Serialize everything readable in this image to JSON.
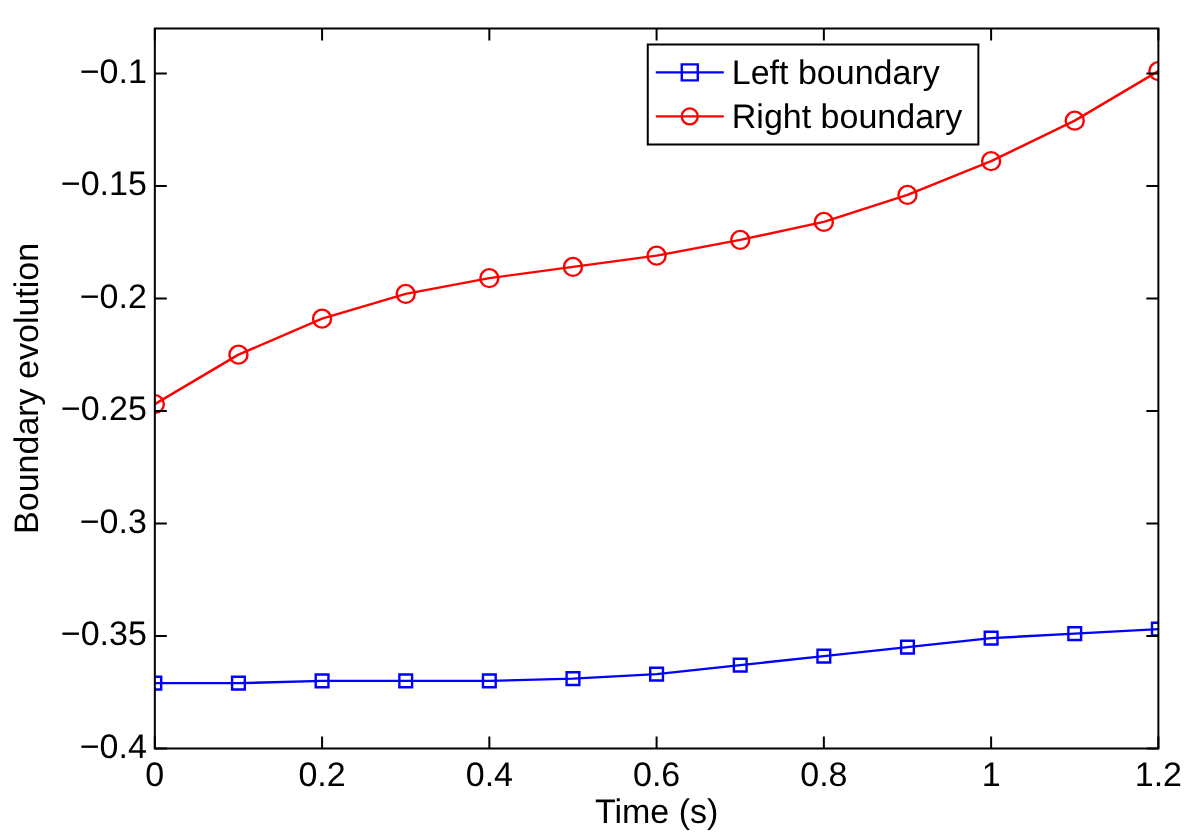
{
  "chart_data": {
    "type": "line",
    "xlabel": "Time (s)",
    "ylabel": "Boundary evolution",
    "x": [
      0,
      0.1,
      0.2,
      0.3,
      0.4,
      0.5,
      0.6,
      0.7,
      0.8,
      0.9,
      1.0,
      1.1,
      1.2
    ],
    "series": [
      {
        "name": "Left boundary",
        "color": "#0000ff",
        "marker": "square",
        "values": [
          -0.371,
          -0.371,
          -0.37,
          -0.37,
          -0.37,
          -0.369,
          -0.367,
          -0.363,
          -0.359,
          -0.355,
          -0.351,
          -0.349,
          -0.347
        ]
      },
      {
        "name": "Right boundary",
        "color": "#ff0000",
        "marker": "circle",
        "values": [
          -0.247,
          -0.225,
          -0.209,
          -0.198,
          -0.191,
          -0.186,
          -0.181,
          -0.174,
          -0.166,
          -0.154,
          -0.139,
          -0.121,
          -0.099
        ]
      }
    ],
    "xlim": [
      0,
      1.2
    ],
    "xticks": [
      0,
      0.2,
      0.4,
      0.6,
      0.8,
      1,
      1.2
    ],
    "ylim": [
      -0.4,
      -0.08
    ],
    "yticks": [
      -0.4,
      -0.35,
      -0.3,
      -0.25,
      -0.2,
      -0.15,
      -0.1
    ],
    "grid": false,
    "legend": "top right",
    "line_style": "solid"
  }
}
